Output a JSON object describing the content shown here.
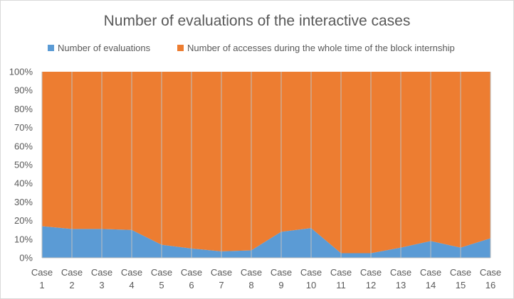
{
  "chart_data": {
    "type": "area",
    "stacked": "percent",
    "title": "Number of evaluations of the interactive cases",
    "categories": [
      [
        "Case",
        "1"
      ],
      [
        "Case",
        "2"
      ],
      [
        "Case",
        "3"
      ],
      [
        "Case",
        "4"
      ],
      [
        "Case",
        "5"
      ],
      [
        "Case",
        "6"
      ],
      [
        "Case",
        "7"
      ],
      [
        "Case",
        "8"
      ],
      [
        "Case",
        "9"
      ],
      [
        "Case",
        "10"
      ],
      [
        "Case",
        "11"
      ],
      [
        "Case",
        "12"
      ],
      [
        "Case",
        "13"
      ],
      [
        "Case",
        "14"
      ],
      [
        "Case",
        "15"
      ],
      [
        "Case",
        "16"
      ]
    ],
    "series": [
      {
        "name": "Number of evaluations",
        "color": "#5b9bd5",
        "values": [
          17,
          15.5,
          15.5,
          15,
          7,
          5,
          3.5,
          4,
          14,
          16,
          2.5,
          2.5,
          5.5,
          9,
          5.5,
          10.5
        ]
      },
      {
        "name": "Number of accesses during the whole time of the block internship",
        "color": "#ed7d31",
        "values": [
          83,
          84.5,
          84.5,
          85,
          93,
          95,
          96.5,
          96,
          86,
          84,
          97.5,
          97.5,
          94.5,
          91,
          94.5,
          89.5
        ]
      }
    ],
    "yticks": [
      "0%",
      "10%",
      "20%",
      "30%",
      "40%",
      "50%",
      "60%",
      "70%",
      "80%",
      "90%",
      "100%"
    ],
    "ylim": [
      0,
      100
    ],
    "grid": "vertical",
    "legend": "top"
  }
}
